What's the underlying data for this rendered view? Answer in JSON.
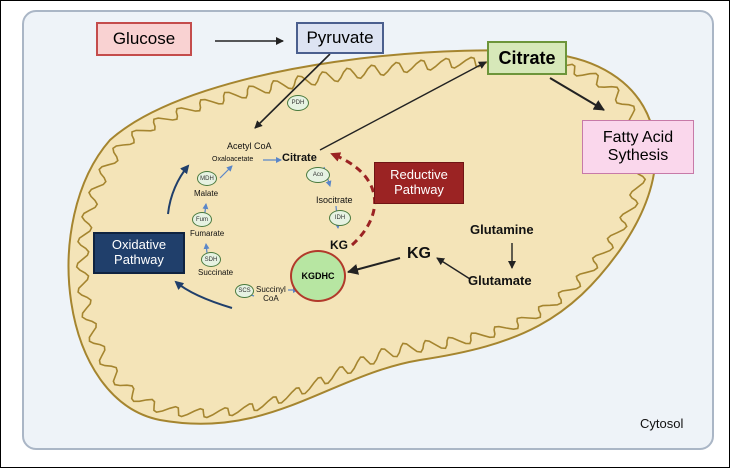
{
  "boxes": {
    "glucose": "Glucose",
    "pyruvate": "Pyruvate",
    "citrate_cyto": "Citrate",
    "fatty_acid": "Fatty Acid\nSythesis",
    "reductive": "Reductive\nPathway",
    "oxidative": "Oxidative\nPathway",
    "kgdhc": "KGDHC"
  },
  "metabolites": {
    "acetyl_coa": "Acetyl CoA",
    "oxaloacetate": "Oxaloacetate",
    "citrate_mito": "Citrate",
    "isocitrate": "Isocitrate",
    "kg_mito": "KG",
    "kg_cyto": "KG",
    "malate": "Malate",
    "fumarate": "Fumarate",
    "succinate": "Succinate",
    "succinyl_coa": "Succinyl\nCoA",
    "glutamine": "Glutamine",
    "glutamate": "Glutamate",
    "cytosol": "Cytosol"
  },
  "enzymes": {
    "pdh": "PDH",
    "aco": "Aco",
    "idh": "IDH",
    "mdh": "MDH",
    "fum": "Fum",
    "sdh": "SDH",
    "scs": "SCS"
  },
  "colors": {
    "mito_fill": "#f4e4b8",
    "mito_stroke": "#a5852f",
    "glucose_fill": "#f9d2d2",
    "glucose_border": "#c44c4c",
    "pyruvate_fill": "#dde3f2",
    "pyruvate_border": "#4b5f8e",
    "citrate_fill": "#d7e8b9",
    "citrate_border": "#6d953a",
    "fatty_fill": "#fad7ec",
    "fatty_border": "#c77aa8",
    "reductive": "#9b2323",
    "oxidative": "#203f6b",
    "kgdhc_fill": "#b7e6a2",
    "kgdhc_border": "#b23a2b",
    "cycle_arrow": "#5a86c8"
  }
}
